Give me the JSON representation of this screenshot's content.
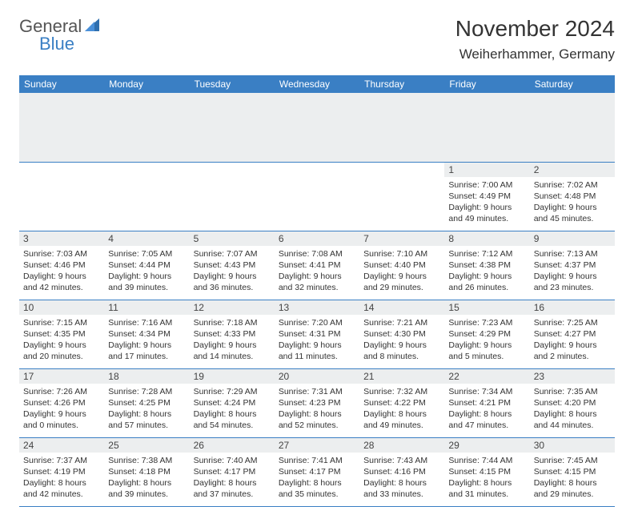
{
  "brand": {
    "part1": "General",
    "part2": "Blue",
    "sail_color": "#2f6fae"
  },
  "title": "November 2024",
  "location": "Weiherhammer, Germany",
  "header_bg": "#3a7fc4",
  "header_text": "#ffffff",
  "daynum_bg": "#eceeef",
  "rule_color": "#3a7fc4",
  "weekdays": [
    "Sunday",
    "Monday",
    "Tuesday",
    "Wednesday",
    "Thursday",
    "Friday",
    "Saturday"
  ],
  "weeks": [
    [
      null,
      null,
      null,
      null,
      null,
      {
        "n": "1",
        "sunrise": "7:00 AM",
        "sunset": "4:49 PM",
        "daylight": "9 hours and 49 minutes."
      },
      {
        "n": "2",
        "sunrise": "7:02 AM",
        "sunset": "4:48 PM",
        "daylight": "9 hours and 45 minutes."
      }
    ],
    [
      {
        "n": "3",
        "sunrise": "7:03 AM",
        "sunset": "4:46 PM",
        "daylight": "9 hours and 42 minutes."
      },
      {
        "n": "4",
        "sunrise": "7:05 AM",
        "sunset": "4:44 PM",
        "daylight": "9 hours and 39 minutes."
      },
      {
        "n": "5",
        "sunrise": "7:07 AM",
        "sunset": "4:43 PM",
        "daylight": "9 hours and 36 minutes."
      },
      {
        "n": "6",
        "sunrise": "7:08 AM",
        "sunset": "4:41 PM",
        "daylight": "9 hours and 32 minutes."
      },
      {
        "n": "7",
        "sunrise": "7:10 AM",
        "sunset": "4:40 PM",
        "daylight": "9 hours and 29 minutes."
      },
      {
        "n": "8",
        "sunrise": "7:12 AM",
        "sunset": "4:38 PM",
        "daylight": "9 hours and 26 minutes."
      },
      {
        "n": "9",
        "sunrise": "7:13 AM",
        "sunset": "4:37 PM",
        "daylight": "9 hours and 23 minutes."
      }
    ],
    [
      {
        "n": "10",
        "sunrise": "7:15 AM",
        "sunset": "4:35 PM",
        "daylight": "9 hours and 20 minutes."
      },
      {
        "n": "11",
        "sunrise": "7:16 AM",
        "sunset": "4:34 PM",
        "daylight": "9 hours and 17 minutes."
      },
      {
        "n": "12",
        "sunrise": "7:18 AM",
        "sunset": "4:33 PM",
        "daylight": "9 hours and 14 minutes."
      },
      {
        "n": "13",
        "sunrise": "7:20 AM",
        "sunset": "4:31 PM",
        "daylight": "9 hours and 11 minutes."
      },
      {
        "n": "14",
        "sunrise": "7:21 AM",
        "sunset": "4:30 PM",
        "daylight": "9 hours and 8 minutes."
      },
      {
        "n": "15",
        "sunrise": "7:23 AM",
        "sunset": "4:29 PM",
        "daylight": "9 hours and 5 minutes."
      },
      {
        "n": "16",
        "sunrise": "7:25 AM",
        "sunset": "4:27 PM",
        "daylight": "9 hours and 2 minutes."
      }
    ],
    [
      {
        "n": "17",
        "sunrise": "7:26 AM",
        "sunset": "4:26 PM",
        "daylight": "9 hours and 0 minutes."
      },
      {
        "n": "18",
        "sunrise": "7:28 AM",
        "sunset": "4:25 PM",
        "daylight": "8 hours and 57 minutes."
      },
      {
        "n": "19",
        "sunrise": "7:29 AM",
        "sunset": "4:24 PM",
        "daylight": "8 hours and 54 minutes."
      },
      {
        "n": "20",
        "sunrise": "7:31 AM",
        "sunset": "4:23 PM",
        "daylight": "8 hours and 52 minutes."
      },
      {
        "n": "21",
        "sunrise": "7:32 AM",
        "sunset": "4:22 PM",
        "daylight": "8 hours and 49 minutes."
      },
      {
        "n": "22",
        "sunrise": "7:34 AM",
        "sunset": "4:21 PM",
        "daylight": "8 hours and 47 minutes."
      },
      {
        "n": "23",
        "sunrise": "7:35 AM",
        "sunset": "4:20 PM",
        "daylight": "8 hours and 44 minutes."
      }
    ],
    [
      {
        "n": "24",
        "sunrise": "7:37 AM",
        "sunset": "4:19 PM",
        "daylight": "8 hours and 42 minutes."
      },
      {
        "n": "25",
        "sunrise": "7:38 AM",
        "sunset": "4:18 PM",
        "daylight": "8 hours and 39 minutes."
      },
      {
        "n": "26",
        "sunrise": "7:40 AM",
        "sunset": "4:17 PM",
        "daylight": "8 hours and 37 minutes."
      },
      {
        "n": "27",
        "sunrise": "7:41 AM",
        "sunset": "4:17 PM",
        "daylight": "8 hours and 35 minutes."
      },
      {
        "n": "28",
        "sunrise": "7:43 AM",
        "sunset": "4:16 PM",
        "daylight": "8 hours and 33 minutes."
      },
      {
        "n": "29",
        "sunrise": "7:44 AM",
        "sunset": "4:15 PM",
        "daylight": "8 hours and 31 minutes."
      },
      {
        "n": "30",
        "sunrise": "7:45 AM",
        "sunset": "4:15 PM",
        "daylight": "8 hours and 29 minutes."
      }
    ]
  ],
  "labels": {
    "sunrise": "Sunrise:",
    "sunset": "Sunset:",
    "daylight": "Daylight:"
  }
}
